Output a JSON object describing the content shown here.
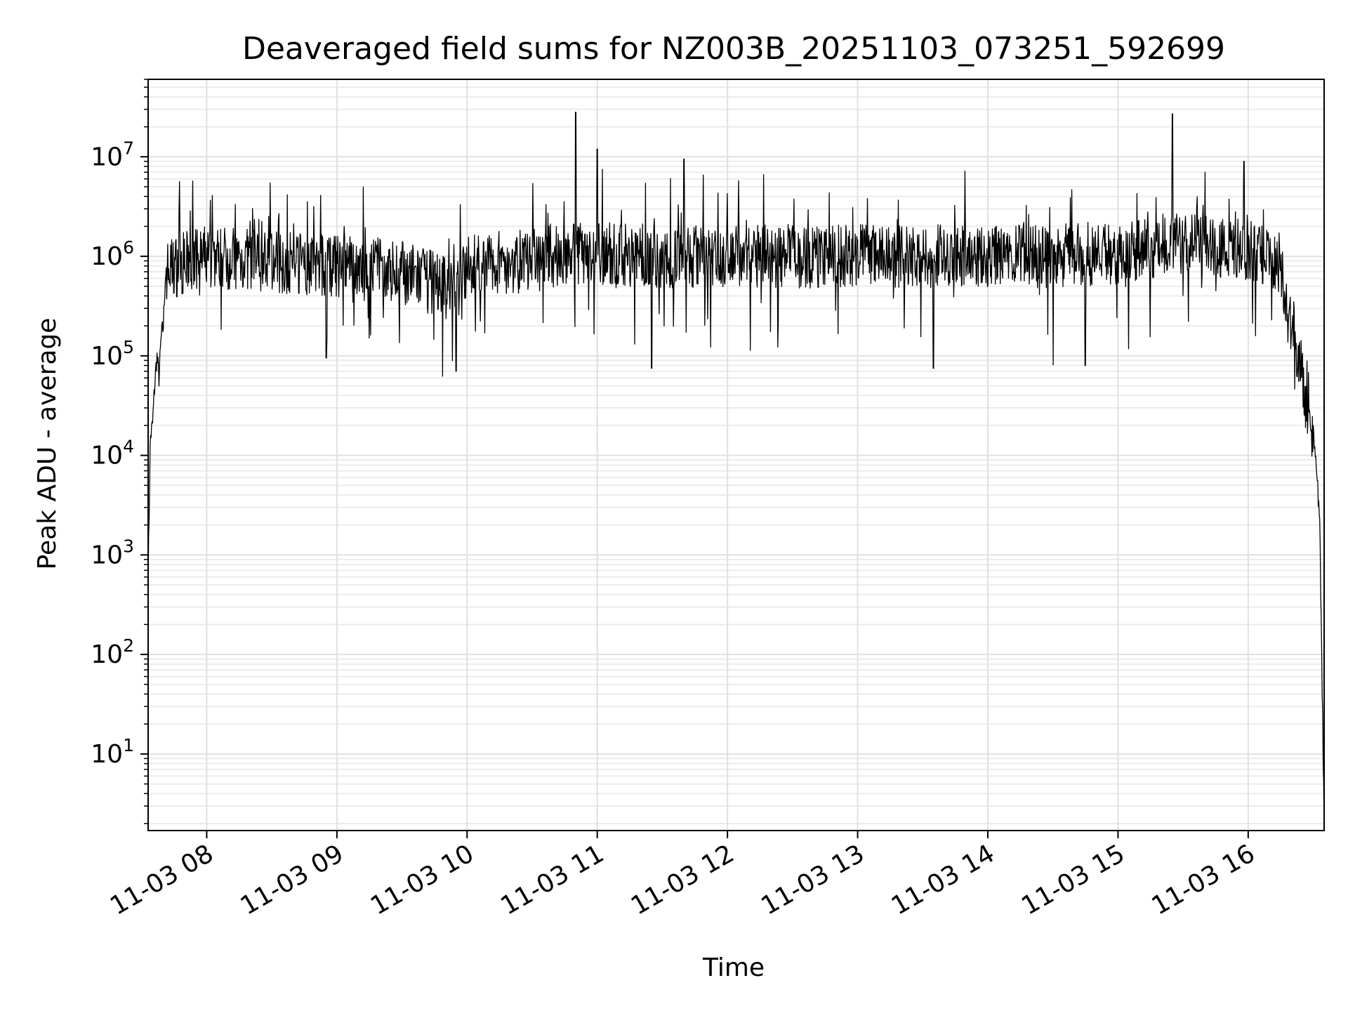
{
  "chart_data": {
    "type": "line",
    "title": "Deaveraged field sums for NZ003B_20251103_073251_592699",
    "xlabel": "Time",
    "ylabel": "Peak ADU - average",
    "yscale": "log",
    "grid": true,
    "x_tick_labels": [
      "11-03 08",
      "11-03 09",
      "11-03 10",
      "11-03 11",
      "11-03 12",
      "11-03 13",
      "11-03 14",
      "11-03 15",
      "11-03 16"
    ],
    "xlim": [
      "2025-11-03 07:33",
      "2025-11-03 16:35"
    ],
    "ylim": [
      1.7,
      60000000
    ],
    "y_ticks": [
      {
        "value": 10,
        "base": "10",
        "exp": "1"
      },
      {
        "value": 100,
        "base": "10",
        "exp": "2"
      },
      {
        "value": 1000,
        "base": "10",
        "exp": "3"
      },
      {
        "value": 10000,
        "base": "10",
        "exp": "4"
      },
      {
        "value": 100000,
        "base": "10",
        "exp": "5"
      },
      {
        "value": 1000000,
        "base": "10",
        "exp": "6"
      },
      {
        "value": 10000000,
        "base": "10",
        "exp": "7"
      }
    ],
    "series": [
      {
        "color": "#000000",
        "points": [
          [
            "2025-11-03 07:33",
            600
          ],
          [
            "2025-11-03 07:34",
            15000
          ],
          [
            "2025-11-03 07:35",
            20000
          ],
          [
            "2025-11-03 07:36",
            50000
          ],
          [
            "2025-11-03 07:37",
            100000
          ],
          [
            "2025-11-03 07:38",
            60000
          ],
          [
            "2025-11-03 07:39",
            150000
          ],
          [
            "2025-11-03 07:40",
            200000
          ],
          [
            "2025-11-03 07:41",
            700000
          ],
          [
            "2025-11-03 07:45",
            800000
          ],
          [
            "2025-11-03 07:55",
            900000
          ],
          [
            "2025-11-03 08:00",
            1000000
          ],
          [
            "2025-11-03 08:30",
            900000
          ],
          [
            "2025-11-03 08:55",
            800000
          ],
          [
            "2025-11-03 09:30",
            700000
          ],
          [
            "2025-11-03 09:55",
            450000
          ],
          [
            "2025-11-03 10:00",
            800000
          ],
          [
            "2025-11-03 10:30",
            900000
          ],
          [
            "2025-11-03 10:50",
            1100000
          ],
          [
            "2025-11-03 11:30",
            1000000
          ],
          [
            "2025-11-03 12:30",
            1000000
          ],
          [
            "2025-11-03 13:30",
            1000000
          ],
          [
            "2025-11-03 14:30",
            1000000
          ],
          [
            "2025-11-03 15:00",
            1100000
          ],
          [
            "2025-11-03 15:30",
            1400000
          ],
          [
            "2025-11-03 16:05",
            1100000
          ],
          [
            "2025-11-03 16:15",
            900000
          ],
          [
            "2025-11-03 16:18",
            300000
          ],
          [
            "2025-11-03 16:22",
            150000
          ],
          [
            "2025-11-03 16:25",
            60000
          ],
          [
            "2025-11-03 16:28",
            25000
          ],
          [
            "2025-11-03 16:31",
            10000
          ],
          [
            "2025-11-03 16:33",
            2000
          ],
          [
            "2025-11-03 16:35",
            2
          ]
        ],
        "spikes": [
          [
            "2025-11-03 10:50",
            28000000
          ],
          [
            "2025-11-03 11:00",
            12000000
          ],
          [
            "2025-11-03 11:40",
            9500000
          ],
          [
            "2025-11-03 15:25",
            27000000
          ],
          [
            "2025-11-03 15:58",
            9000000
          ],
          [
            "2025-11-03 08:55",
            95000
          ],
          [
            "2025-11-03 09:55",
            70000
          ],
          [
            "2025-11-03 11:25",
            75000
          ],
          [
            "2025-11-03 13:35",
            75000
          ],
          [
            "2025-11-03 14:45",
            80000
          ]
        ]
      }
    ]
  }
}
